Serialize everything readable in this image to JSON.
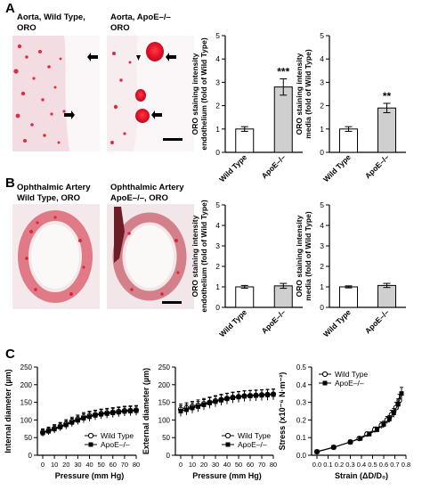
{
  "panels": {
    "A": "A",
    "B": "B",
    "C": "C"
  },
  "micrographs": [
    {
      "id": "a1",
      "title1": "Aorta, Wild Type,",
      "title2": "ORO"
    },
    {
      "id": "a2",
      "title1": "Aorta, ApoE–/–",
      "title2": "ORO"
    },
    {
      "id": "b1",
      "title1": "Ophthalmic Artery",
      "title2": "Wild Type, ORO"
    },
    {
      "id": "b2",
      "title1": "Ophthalmic Artery",
      "title2": "ApoE–/–, ORO"
    }
  ],
  "colors": {
    "tissue_bg": "#f7ecee",
    "stain": "#d9263e",
    "bar_ko": "#cfcfcf",
    "bar_wt": "#ffffff"
  },
  "chart_data": [
    {
      "id": "a-endo",
      "type": "bar",
      "ylabel1": "ORO staining intensity",
      "ylabel2": "endothelium (fold of Wild Type)",
      "categories": [
        "Wild Type",
        "ApoE–/–"
      ],
      "values": [
        1.0,
        2.8
      ],
      "errors": [
        0.1,
        0.35
      ],
      "ylim": [
        0,
        5
      ],
      "yticks": [
        0,
        1,
        2,
        3,
        4,
        5
      ],
      "annotations": [
        "",
        "***"
      ]
    },
    {
      "id": "a-media",
      "type": "bar",
      "ylabel1": "ORO staining intensity",
      "ylabel2": "media (fold of Wild Type)",
      "categories": [
        "Wild Type",
        "ApoE–/–"
      ],
      "values": [
        1.0,
        1.9
      ],
      "errors": [
        0.1,
        0.2
      ],
      "ylim": [
        0,
        5
      ],
      "yticks": [
        0,
        1,
        2,
        3,
        4,
        5
      ],
      "annotations": [
        "",
        "**"
      ]
    },
    {
      "id": "b-endo",
      "type": "bar",
      "ylabel1": "ORO staining intensity",
      "ylabel2": "endothelium (fold of Wild Type)",
      "categories": [
        "Wild Type",
        "ApoE–/–"
      ],
      "values": [
        1.0,
        1.05
      ],
      "errors": [
        0.07,
        0.12
      ],
      "ylim": [
        0,
        5
      ],
      "yticks": [
        0,
        1,
        2,
        3,
        4,
        5
      ],
      "annotations": [
        "",
        ""
      ]
    },
    {
      "id": "b-media",
      "type": "bar",
      "ylabel1": "ORO staining intensity",
      "ylabel2": "media (fold of Wild Type)",
      "categories": [
        "Wild Type",
        "ApoE–/–"
      ],
      "values": [
        1.0,
        1.07
      ],
      "errors": [
        0.05,
        0.1
      ],
      "ylim": [
        0,
        5
      ],
      "yticks": [
        0,
        1,
        2,
        3,
        4,
        5
      ],
      "annotations": [
        "",
        ""
      ]
    },
    {
      "id": "c-internal",
      "type": "line",
      "xlabel": "Pressure (mm Hg)",
      "ylabel": "Internal diameter (µm)",
      "xlim": [
        0,
        80
      ],
      "ylim": [
        0,
        250
      ],
      "xticks": [
        0,
        10,
        20,
        30,
        40,
        50,
        60,
        70,
        80
      ],
      "yticks": [
        0,
        50,
        100,
        150,
        200,
        250
      ],
      "legend": "bottom-right",
      "series": [
        {
          "name": "Wild Type",
          "marker": "open-circle",
          "x": [
            0,
            5,
            10,
            15,
            20,
            25,
            30,
            35,
            40,
            45,
            50,
            55,
            60,
            65,
            70,
            75,
            80
          ],
          "y": [
            65,
            70,
            76,
            82,
            89,
            96,
            102,
            108,
            112,
            115,
            118,
            120,
            122,
            124,
            126,
            127,
            128
          ],
          "err": [
            10,
            10,
            11,
            11,
            12,
            12,
            12,
            13,
            13,
            13,
            13,
            13,
            13,
            13,
            13,
            13,
            13
          ]
        },
        {
          "name": "ApoE–/–",
          "marker": "filled-square",
          "x": [
            0,
            5,
            10,
            15,
            20,
            25,
            30,
            35,
            40,
            45,
            50,
            55,
            60,
            65,
            70,
            75,
            80
          ],
          "y": [
            63,
            68,
            74,
            80,
            86,
            93,
            99,
            105,
            109,
            113,
            116,
            118,
            120,
            122,
            124,
            125,
            126
          ],
          "err": [
            10,
            10,
            11,
            11,
            12,
            12,
            12,
            13,
            13,
            13,
            13,
            13,
            13,
            13,
            13,
            13,
            13
          ]
        }
      ]
    },
    {
      "id": "c-external",
      "type": "line",
      "xlabel": "Pressure (mm Hg)",
      "ylabel": "External diameter (µm)",
      "xlim": [
        0,
        80
      ],
      "ylim": [
        0,
        250
      ],
      "xticks": [
        0,
        10,
        20,
        30,
        40,
        50,
        60,
        70,
        80
      ],
      "yticks": [
        0,
        50,
        100,
        150,
        200,
        250
      ],
      "legend": "bottom-right",
      "series": [
        {
          "name": "Wild Type",
          "marker": "open-circle",
          "x": [
            0,
            5,
            10,
            15,
            20,
            25,
            30,
            35,
            40,
            45,
            50,
            55,
            60,
            65,
            70,
            75,
            80
          ],
          "y": [
            130,
            134,
            138,
            142,
            146,
            150,
            154,
            158,
            161,
            164,
            166,
            168,
            169,
            170,
            171,
            172,
            173
          ],
          "err": [
            15,
            15,
            15,
            15,
            15,
            15,
            15,
            15,
            15,
            15,
            15,
            15,
            15,
            15,
            15,
            15,
            15
          ]
        },
        {
          "name": "ApoE–/–",
          "marker": "filled-square",
          "x": [
            0,
            5,
            10,
            15,
            20,
            25,
            30,
            35,
            40,
            45,
            50,
            55,
            60,
            65,
            70,
            75,
            80
          ],
          "y": [
            125,
            129,
            134,
            138,
            143,
            148,
            152,
            156,
            160,
            163,
            165,
            167,
            168,
            169,
            170,
            171,
            172
          ],
          "err": [
            15,
            15,
            15,
            15,
            15,
            15,
            15,
            15,
            15,
            15,
            15,
            15,
            15,
            15,
            15,
            15,
            15
          ]
        }
      ]
    },
    {
      "id": "c-stress",
      "type": "line",
      "xlabel": "Strain (ΔD/D₀)",
      "ylabel": "Stress (x10⁻⁶ N·m⁻²)",
      "xlim": [
        0,
        0.8
      ],
      "ylim": [
        0,
        0.5
      ],
      "xticks": [
        0,
        0.1,
        0.2,
        0.3,
        0.4,
        0.5,
        0.6,
        0.7,
        0.8
      ],
      "yticks": [
        0,
        0.1,
        0.2,
        0.3,
        0.4,
        0.5
      ],
      "xticklabels": [
        "0.0",
        "0.1",
        "0.2",
        "0.3",
        "0.4",
        "0.5",
        "0.6",
        "0.7",
        "0.8"
      ],
      "yticklabels": [
        "0.0",
        "0.1",
        "0.2",
        "0.3",
        "0.4",
        "0.5"
      ],
      "legend": "top-left",
      "series": [
        {
          "name": "Wild Type",
          "marker": "open-circle",
          "x": [
            0.0,
            0.15,
            0.3,
            0.38,
            0.45,
            0.52,
            0.58,
            0.63,
            0.67,
            0.71,
            0.74
          ],
          "y": [
            0.02,
            0.045,
            0.075,
            0.095,
            0.12,
            0.145,
            0.17,
            0.2,
            0.23,
            0.27,
            0.31
          ],
          "err": [
            0.002,
            0.005,
            0.008,
            0.01,
            0.012,
            0.015,
            0.018,
            0.02,
            0.025,
            0.03,
            0.035
          ]
        },
        {
          "name": "ApoE–/–",
          "marker": "filled-square",
          "x": [
            0.0,
            0.15,
            0.3,
            0.39,
            0.47,
            0.54,
            0.6,
            0.65,
            0.69,
            0.73,
            0.76
          ],
          "y": [
            0.02,
            0.045,
            0.075,
            0.095,
            0.12,
            0.145,
            0.175,
            0.205,
            0.24,
            0.29,
            0.35
          ],
          "err": [
            0.002,
            0.005,
            0.008,
            0.01,
            0.012,
            0.015,
            0.018,
            0.02,
            0.025,
            0.03,
            0.035
          ]
        }
      ]
    }
  ]
}
